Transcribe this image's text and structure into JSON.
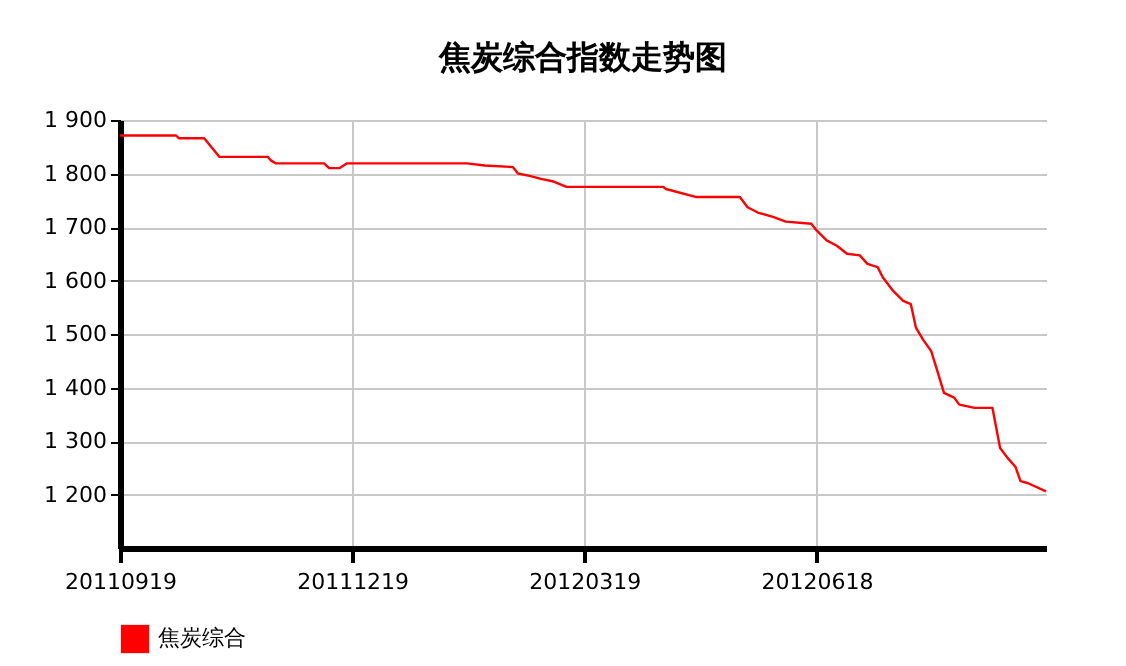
{
  "chart_data": {
    "type": "line",
    "title": "焦炭综合指数走势图",
    "x": [
      "2011-09-19",
      "2011-10-11",
      "2011-10-12",
      "2011-10-22",
      "2011-10-28",
      "2011-11-16",
      "2011-11-17",
      "2011-11-19",
      "2011-12-08",
      "2011-12-10",
      "2011-12-14",
      "2011-12-17",
      "2012-02-02",
      "2012-02-09",
      "2012-02-20",
      "2012-02-22",
      "2012-02-27",
      "2012-03-02",
      "2012-03-07",
      "2012-03-12",
      "2012-04-19",
      "2012-04-20",
      "2012-05-02",
      "2012-05-19",
      "2012-05-22",
      "2012-05-26",
      "2012-06-01",
      "2012-06-06",
      "2012-06-16",
      "2012-06-18",
      "2012-06-22",
      "2012-06-26",
      "2012-06-30",
      "2012-07-05",
      "2012-07-08",
      "2012-07-12",
      "2012-07-14",
      "2012-07-18",
      "2012-07-22",
      "2012-07-25",
      "2012-07-27",
      "2012-07-30",
      "2012-08-02",
      "2012-08-04",
      "2012-08-07",
      "2012-08-11",
      "2012-08-13",
      "2012-08-19",
      "2012-08-26",
      "2012-08-29",
      "2012-09-01",
      "2012-09-04",
      "2012-09-06",
      "2012-09-09",
      "2012-09-16"
    ],
    "series": [
      {
        "name": "焦炭综合",
        "color": "#ff0000",
        "values": [
          1871,
          1871,
          1866,
          1866,
          1831,
          1831,
          1825,
          1819,
          1819,
          1810,
          1810,
          1819,
          1819,
          1815,
          1812,
          1800,
          1795,
          1790,
          1785,
          1775,
          1775,
          1771,
          1756,
          1756,
          1737,
          1727,
          1719,
          1710,
          1706,
          1694,
          1675,
          1665,
          1650,
          1647,
          1631,
          1625,
          1606,
          1581,
          1562,
          1556,
          1512,
          1488,
          1468,
          1437,
          1390,
          1381,
          1368,
          1362,
          1362,
          1287,
          1268,
          1252,
          1225,
          1221,
          1206
        ]
      }
    ],
    "xlim": [
      "2011-09-19",
      "2012-09-16"
    ],
    "xticks": [
      {
        "value": "2011-09-19",
        "label": "20110919"
      },
      {
        "value": "2011-12-19",
        "label": "20111219"
      },
      {
        "value": "2012-03-19",
        "label": "20120319"
      },
      {
        "value": "2012-06-18",
        "label": "20120618"
      }
    ],
    "ylim": [
      1100,
      1900
    ],
    "yticks": [
      {
        "value": 1200,
        "label": "1 200"
      },
      {
        "value": 1300,
        "label": "1 300"
      },
      {
        "value": 1400,
        "label": "1 400"
      },
      {
        "value": 1500,
        "label": "1 500"
      },
      {
        "value": 1600,
        "label": "1 600"
      },
      {
        "value": 1700,
        "label": "1 700"
      },
      {
        "value": 1800,
        "label": "1 800"
      },
      {
        "value": 1900,
        "label": "1 900"
      }
    ],
    "grid": true,
    "legend": "bottom left",
    "marker": "none",
    "line_style": "solid"
  }
}
